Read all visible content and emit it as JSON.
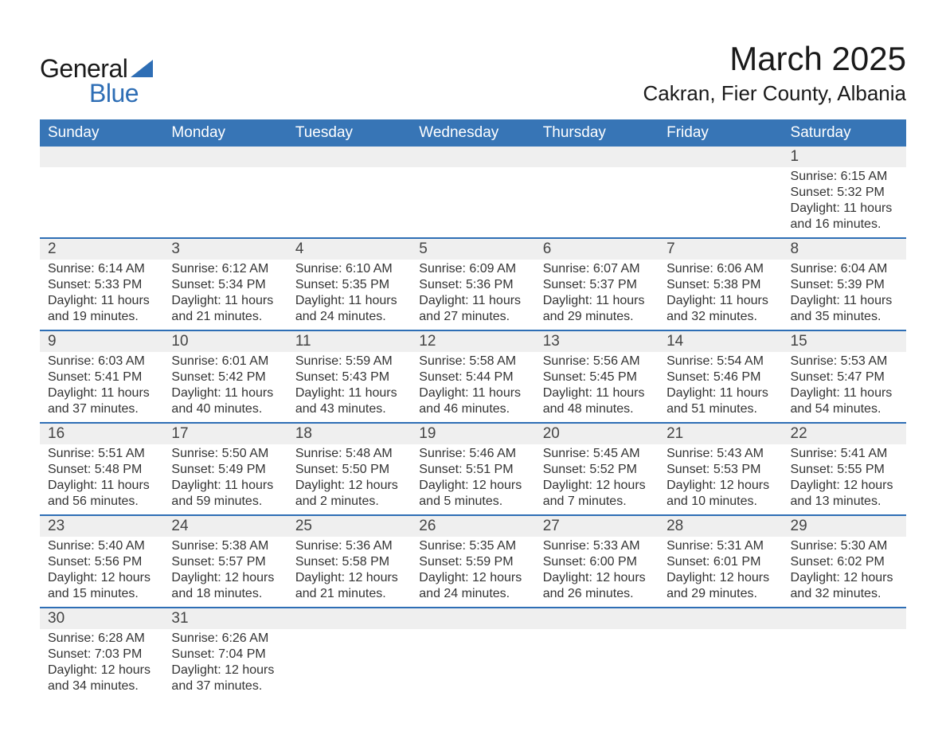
{
  "logo": {
    "text1": "General",
    "text2": "Blue",
    "triangle_color": "#2e6eb5"
  },
  "header": {
    "month": "March 2025",
    "location": "Cakran, Fier County, Albania"
  },
  "weekdays": [
    "Sunday",
    "Monday",
    "Tuesday",
    "Wednesday",
    "Thursday",
    "Friday",
    "Saturday"
  ],
  "colors": {
    "header_bg": "#3775b6",
    "header_text": "#ffffff",
    "daynum_bg": "#efefef",
    "row_border": "#2e6eb5",
    "body_text": "#333333"
  },
  "typography": {
    "title_fontsize": 42,
    "location_fontsize": 26,
    "weekday_fontsize": 19,
    "daynum_fontsize": 19,
    "cell_fontsize": 16
  },
  "weeks": [
    {
      "nums": [
        "",
        "",
        "",
        "",
        "",
        "",
        "1"
      ],
      "cells": [
        null,
        null,
        null,
        null,
        null,
        null,
        {
          "sunrise": "Sunrise: 6:15 AM",
          "sunset": "Sunset: 5:32 PM",
          "day1": "Daylight: 11 hours",
          "day2": "and 16 minutes."
        }
      ]
    },
    {
      "nums": [
        "2",
        "3",
        "4",
        "5",
        "6",
        "7",
        "8"
      ],
      "cells": [
        {
          "sunrise": "Sunrise: 6:14 AM",
          "sunset": "Sunset: 5:33 PM",
          "day1": "Daylight: 11 hours",
          "day2": "and 19 minutes."
        },
        {
          "sunrise": "Sunrise: 6:12 AM",
          "sunset": "Sunset: 5:34 PM",
          "day1": "Daylight: 11 hours",
          "day2": "and 21 minutes."
        },
        {
          "sunrise": "Sunrise: 6:10 AM",
          "sunset": "Sunset: 5:35 PM",
          "day1": "Daylight: 11 hours",
          "day2": "and 24 minutes."
        },
        {
          "sunrise": "Sunrise: 6:09 AM",
          "sunset": "Sunset: 5:36 PM",
          "day1": "Daylight: 11 hours",
          "day2": "and 27 minutes."
        },
        {
          "sunrise": "Sunrise: 6:07 AM",
          "sunset": "Sunset: 5:37 PM",
          "day1": "Daylight: 11 hours",
          "day2": "and 29 minutes."
        },
        {
          "sunrise": "Sunrise: 6:06 AM",
          "sunset": "Sunset: 5:38 PM",
          "day1": "Daylight: 11 hours",
          "day2": "and 32 minutes."
        },
        {
          "sunrise": "Sunrise: 6:04 AM",
          "sunset": "Sunset: 5:39 PM",
          "day1": "Daylight: 11 hours",
          "day2": "and 35 minutes."
        }
      ]
    },
    {
      "nums": [
        "9",
        "10",
        "11",
        "12",
        "13",
        "14",
        "15"
      ],
      "cells": [
        {
          "sunrise": "Sunrise: 6:03 AM",
          "sunset": "Sunset: 5:41 PM",
          "day1": "Daylight: 11 hours",
          "day2": "and 37 minutes."
        },
        {
          "sunrise": "Sunrise: 6:01 AM",
          "sunset": "Sunset: 5:42 PM",
          "day1": "Daylight: 11 hours",
          "day2": "and 40 minutes."
        },
        {
          "sunrise": "Sunrise: 5:59 AM",
          "sunset": "Sunset: 5:43 PM",
          "day1": "Daylight: 11 hours",
          "day2": "and 43 minutes."
        },
        {
          "sunrise": "Sunrise: 5:58 AM",
          "sunset": "Sunset: 5:44 PM",
          "day1": "Daylight: 11 hours",
          "day2": "and 46 minutes."
        },
        {
          "sunrise": "Sunrise: 5:56 AM",
          "sunset": "Sunset: 5:45 PM",
          "day1": "Daylight: 11 hours",
          "day2": "and 48 minutes."
        },
        {
          "sunrise": "Sunrise: 5:54 AM",
          "sunset": "Sunset: 5:46 PM",
          "day1": "Daylight: 11 hours",
          "day2": "and 51 minutes."
        },
        {
          "sunrise": "Sunrise: 5:53 AM",
          "sunset": "Sunset: 5:47 PM",
          "day1": "Daylight: 11 hours",
          "day2": "and 54 minutes."
        }
      ]
    },
    {
      "nums": [
        "16",
        "17",
        "18",
        "19",
        "20",
        "21",
        "22"
      ],
      "cells": [
        {
          "sunrise": "Sunrise: 5:51 AM",
          "sunset": "Sunset: 5:48 PM",
          "day1": "Daylight: 11 hours",
          "day2": "and 56 minutes."
        },
        {
          "sunrise": "Sunrise: 5:50 AM",
          "sunset": "Sunset: 5:49 PM",
          "day1": "Daylight: 11 hours",
          "day2": "and 59 minutes."
        },
        {
          "sunrise": "Sunrise: 5:48 AM",
          "sunset": "Sunset: 5:50 PM",
          "day1": "Daylight: 12 hours",
          "day2": "and 2 minutes."
        },
        {
          "sunrise": "Sunrise: 5:46 AM",
          "sunset": "Sunset: 5:51 PM",
          "day1": "Daylight: 12 hours",
          "day2": "and 5 minutes."
        },
        {
          "sunrise": "Sunrise: 5:45 AM",
          "sunset": "Sunset: 5:52 PM",
          "day1": "Daylight: 12 hours",
          "day2": "and 7 minutes."
        },
        {
          "sunrise": "Sunrise: 5:43 AM",
          "sunset": "Sunset: 5:53 PM",
          "day1": "Daylight: 12 hours",
          "day2": "and 10 minutes."
        },
        {
          "sunrise": "Sunrise: 5:41 AM",
          "sunset": "Sunset: 5:55 PM",
          "day1": "Daylight: 12 hours",
          "day2": "and 13 minutes."
        }
      ]
    },
    {
      "nums": [
        "23",
        "24",
        "25",
        "26",
        "27",
        "28",
        "29"
      ],
      "cells": [
        {
          "sunrise": "Sunrise: 5:40 AM",
          "sunset": "Sunset: 5:56 PM",
          "day1": "Daylight: 12 hours",
          "day2": "and 15 minutes."
        },
        {
          "sunrise": "Sunrise: 5:38 AM",
          "sunset": "Sunset: 5:57 PM",
          "day1": "Daylight: 12 hours",
          "day2": "and 18 minutes."
        },
        {
          "sunrise": "Sunrise: 5:36 AM",
          "sunset": "Sunset: 5:58 PM",
          "day1": "Daylight: 12 hours",
          "day2": "and 21 minutes."
        },
        {
          "sunrise": "Sunrise: 5:35 AM",
          "sunset": "Sunset: 5:59 PM",
          "day1": "Daylight: 12 hours",
          "day2": "and 24 minutes."
        },
        {
          "sunrise": "Sunrise: 5:33 AM",
          "sunset": "Sunset: 6:00 PM",
          "day1": "Daylight: 12 hours",
          "day2": "and 26 minutes."
        },
        {
          "sunrise": "Sunrise: 5:31 AM",
          "sunset": "Sunset: 6:01 PM",
          "day1": "Daylight: 12 hours",
          "day2": "and 29 minutes."
        },
        {
          "sunrise": "Sunrise: 5:30 AM",
          "sunset": "Sunset: 6:02 PM",
          "day1": "Daylight: 12 hours",
          "day2": "and 32 minutes."
        }
      ]
    },
    {
      "nums": [
        "30",
        "31",
        "",
        "",
        "",
        "",
        ""
      ],
      "cells": [
        {
          "sunrise": "Sunrise: 6:28 AM",
          "sunset": "Sunset: 7:03 PM",
          "day1": "Daylight: 12 hours",
          "day2": "and 34 minutes."
        },
        {
          "sunrise": "Sunrise: 6:26 AM",
          "sunset": "Sunset: 7:04 PM",
          "day1": "Daylight: 12 hours",
          "day2": "and 37 minutes."
        },
        null,
        null,
        null,
        null,
        null
      ]
    }
  ]
}
